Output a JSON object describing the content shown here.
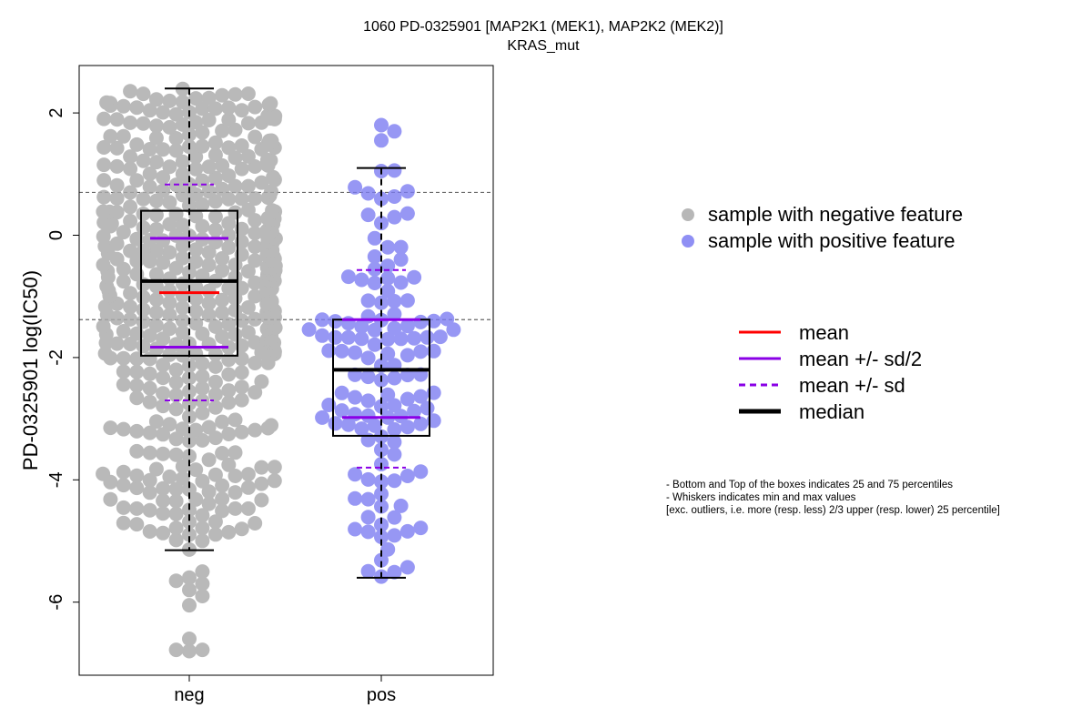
{
  "chart_data": {
    "type": "scatter",
    "subtype": "beeswarm-boxplot",
    "title": "1060 PD-0325901 [MAP2K1 (MEK1), MAP2K2 (MEK2)]",
    "subtitle": "KRAS_mut",
    "xlabel": "",
    "ylabel": "PD-0325901 log(IC50)",
    "ylim": [
      -7.2,
      2.8
    ],
    "yticks": [
      2,
      0,
      -2,
      -4,
      -6
    ],
    "ytick_labels": [
      "2",
      "0",
      "-2",
      "-4",
      "-6"
    ],
    "categories": [
      "neg",
      "pos"
    ],
    "reference_lines": [
      0.7,
      -1.38
    ],
    "grid": false,
    "colors": {
      "neg_points": "#aaaaaa",
      "pos_points": "#7b7bf2",
      "mean": "#ff0000",
      "sd": "#8a00e6",
      "median": "#000000",
      "reference": "#666666"
    },
    "groups": [
      {
        "name": "neg",
        "n_points": 560,
        "min": -5.15,
        "q1": -1.97,
        "median": -0.75,
        "q3": 0.4,
        "max": 2.4,
        "mean": -0.94,
        "mean_minus_sd_half": -1.83,
        "mean_plus_sd_half": -0.05,
        "mean_minus_sd": -2.7,
        "mean_plus_sd": 0.83,
        "outliers": [
          -5.5,
          -5.6,
          -5.7,
          -5.8,
          -5.9,
          -6.05,
          -5.65,
          -6.6,
          -6.78,
          -6.8,
          -6.78
        ]
      },
      {
        "name": "pos",
        "n_points": 130,
        "min": -5.6,
        "q1": -3.28,
        "median": -2.2,
        "q3": -1.38,
        "max": 1.1,
        "mean": -2.2,
        "mean_minus_sd_half": -2.98,
        "mean_plus_sd_half": -1.38,
        "mean_minus_sd": -3.8,
        "mean_plus_sd": -0.57,
        "outliers": [
          1.8,
          1.7,
          1.55
        ]
      }
    ],
    "legend_points": [
      {
        "label": "sample with negative feature",
        "color": "#aaaaaa"
      },
      {
        "label": "sample with positive feature",
        "color": "#7b7bf2"
      }
    ],
    "legend_lines": [
      {
        "label": "mean",
        "style": "solid",
        "color": "#ff0000"
      },
      {
        "label": "mean +/- sd/2",
        "style": "solid",
        "color": "#8a00e6"
      },
      {
        "label": "mean +/- sd",
        "style": "dashed",
        "color": "#8a00e6"
      },
      {
        "label": "median",
        "style": "thick",
        "color": "#000000"
      }
    ],
    "notes": [
      "- Bottom and Top of the boxes indicates 25 and 75 percentiles",
      "- Whiskers indicates min and max values",
      "[exc. outliers, i.e. more (resp. less) 2/3 upper (resp. lower) 25 percentile]"
    ]
  }
}
